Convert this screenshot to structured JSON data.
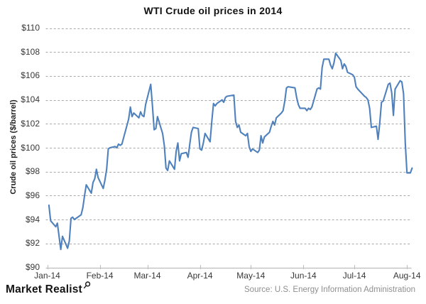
{
  "title": "WTI Crude oil prices in 2014",
  "y_axis": {
    "title": "Crude oil prices ($/barrel)",
    "tick_labels": [
      "$110",
      "$108",
      "$106",
      "$104",
      "$102",
      "$100",
      "$98",
      "$96",
      "$94",
      "$92",
      "$90"
    ],
    "min": 90,
    "max": 110,
    "step": 2
  },
  "x_axis": {
    "tick_labels": [
      "Jan-14",
      "Feb-14",
      "Mar-14",
      "Apr-14",
      "May-14",
      "Jun-14",
      "Jul-14",
      "Aug-14"
    ]
  },
  "footer": {
    "brand": "Market Realist",
    "brand_icon": "magnifier-icon",
    "source": "Source: U.S. Energy Information Administration"
  },
  "colors": {
    "line": "#4f81bd",
    "gridline": "#a9a9a9",
    "axis": "#bdbdbd",
    "title_text": "#111111",
    "tick_text": "#383838",
    "source_text": "#8f8f8f"
  },
  "chart_data": {
    "type": "line",
    "title": "WTI Crude oil prices in 2014",
    "xlabel": "",
    "ylabel": "Crude oil prices ($/barrel)",
    "ylim": [
      90,
      110
    ],
    "y_gridline_step": 2,
    "grid": "horizontal-dashed",
    "legend": "none",
    "x_unit": "day of year 2014 (Jan 1 = 0), daily trading-day series",
    "month_tick_days": [
      0,
      31,
      59,
      90,
      120,
      151,
      181,
      212
    ],
    "series": [
      {
        "name": "WTI crude oil price ($/barrel)",
        "x_days": [
          1,
          2,
          5,
          6,
          7,
          8,
          9,
          12,
          13,
          14,
          15,
          16,
          20,
          21,
          22,
          23,
          26,
          27,
          28,
          29,
          30,
          33,
          34,
          35,
          36,
          37,
          40,
          41,
          42,
          43,
          44,
          48,
          49,
          50,
          51,
          54,
          55,
          56,
          57,
          58,
          61,
          62,
          63,
          64,
          65,
          68,
          69,
          70,
          71,
          72,
          75,
          76,
          77,
          78,
          79,
          82,
          83,
          84,
          85,
          86,
          89,
          90,
          91,
          92,
          93,
          96,
          97,
          98,
          99,
          100,
          103,
          104,
          105,
          106,
          110,
          111,
          112,
          113,
          114,
          117,
          118,
          119,
          120,
          121,
          124,
          125,
          126,
          127,
          128,
          131,
          132,
          133,
          134,
          135,
          138,
          139,
          140,
          141,
          142,
          146,
          147,
          148,
          149,
          152,
          153,
          154,
          155,
          156,
          159,
          160,
          161,
          162,
          163,
          166,
          167,
          168,
          169,
          170,
          173,
          174,
          175,
          176,
          177,
          180,
          181,
          182,
          183,
          187,
          188,
          189,
          190,
          191,
          194,
          195,
          196,
          197,
          198,
          201,
          202,
          203,
          204,
          205,
          208,
          209,
          210,
          211,
          212,
          214,
          215
        ],
        "values": [
          95.2,
          93.9,
          93.4,
          93.7,
          92.6,
          91.5,
          92.6,
          91.6,
          92.2,
          94.1,
          94.2,
          94.0,
          94.4,
          95.0,
          96.0,
          96.9,
          96.2,
          97.1,
          97.4,
          98.2,
          97.5,
          96.6,
          97.3,
          98.2,
          99.9,
          100.0,
          100.1,
          100.0,
          100.3,
          100.2,
          100.3,
          102.4,
          103.4,
          102.6,
          102.9,
          102.5,
          103.0,
          102.7,
          102.6,
          103.6,
          105.3,
          103.5,
          101.5,
          101.6,
          102.6,
          101.2,
          100.2,
          98.3,
          98.1,
          98.9,
          98.2,
          99.7,
          100.4,
          98.9,
          99.5,
          99.6,
          99.2,
          100.3,
          101.3,
          101.7,
          101.6,
          99.9,
          99.8,
          100.4,
          101.2,
          100.5,
          102.2,
          103.7,
          103.5,
          103.7,
          104.0,
          103.8,
          104.2,
          104.3,
          104.4,
          102.2,
          101.7,
          101.9,
          101.3,
          101.0,
          101.2,
          100.1,
          99.7,
          99.9,
          99.6,
          99.8,
          101.0,
          100.4,
          100.9,
          101.3,
          101.8,
          102.2,
          101.9,
          102.5,
          102.9,
          103.1,
          103.9,
          105.0,
          105.1,
          105.0,
          104.2,
          103.6,
          103.3,
          103.3,
          103.1,
          103.3,
          103.2,
          103.4,
          104.9,
          105.0,
          104.9,
          106.7,
          107.4,
          107.4,
          106.9,
          106.6,
          107.1,
          107.9,
          107.3,
          106.6,
          107.0,
          106.8,
          106.3,
          106.1,
          105.9,
          105.1,
          104.9,
          104.3,
          104.2,
          104.0,
          103.3,
          101.7,
          101.8,
          100.7,
          102.1,
          103.8,
          103.9,
          105.3,
          105.4,
          104.6,
          102.7,
          104.9,
          105.6,
          105.5,
          104.5,
          100.4,
          97.9,
          97.9,
          98.3
        ]
      }
    ]
  }
}
